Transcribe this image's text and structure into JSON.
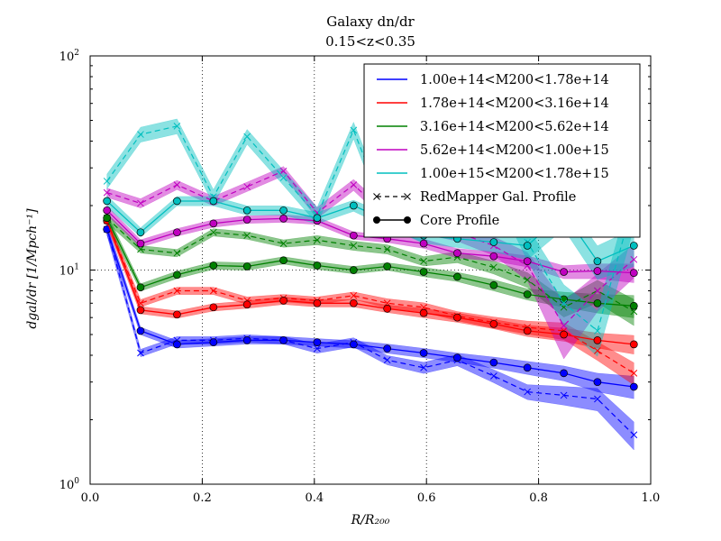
{
  "chart_data": {
    "type": "line",
    "title": "Galaxy dn/dr",
    "subtitle": "0.15<z<0.35",
    "xlabel": "R/R₂₀₀",
    "ylabel": "dgal/dr [1/Mpch⁻¹]",
    "xlim": [
      0.0,
      1.0
    ],
    "ylim": [
      1,
      100
    ],
    "yscale": "log",
    "grid": "dotted",
    "legend_position": "top-right",
    "x_ticks": [
      "0.0",
      "0.2",
      "0.4",
      "0.6",
      "0.8",
      "1.0"
    ],
    "y_ticks": [
      {
        "base": "10",
        "exp": "0"
      },
      {
        "base": "10",
        "exp": "1"
      },
      {
        "base": "10",
        "exp": "2"
      }
    ],
    "x": [
      0.03,
      0.09,
      0.155,
      0.22,
      0.28,
      0.345,
      0.405,
      0.47,
      0.53,
      0.595,
      0.655,
      0.72,
      0.78,
      0.845,
      0.905,
      0.97
    ],
    "series": [
      {
        "name": "1.00e+14<M200<1.78e+14",
        "color": "#0000ff",
        "core": [
          15.5,
          5.2,
          4.5,
          4.6,
          4.7,
          4.7,
          4.6,
          4.5,
          4.3,
          4.1,
          3.9,
          3.7,
          3.5,
          3.3,
          3.0,
          2.85
        ],
        "core_band": [
          0.06,
          0.04,
          0.04,
          0.04,
          0.04,
          0.04,
          0.04,
          0.04,
          0.05,
          0.05,
          0.05,
          0.06,
          0.07,
          0.08,
          0.1,
          0.12
        ],
        "redmapper": [
          15.5,
          4.1,
          4.7,
          4.7,
          4.8,
          4.7,
          4.3,
          4.6,
          3.8,
          3.5,
          3.8,
          3.2,
          2.7,
          2.6,
          2.5,
          1.7
        ],
        "redmapper_band": [
          0.06,
          0.04,
          0.04,
          0.04,
          0.04,
          0.04,
          0.05,
          0.05,
          0.05,
          0.06,
          0.06,
          0.07,
          0.08,
          0.1,
          0.12,
          0.15
        ]
      },
      {
        "name": "1.78e+14<M200<3.16e+14",
        "color": "#ff0000",
        "core": [
          17.0,
          6.5,
          6.2,
          6.7,
          6.9,
          7.2,
          7.0,
          7.0,
          6.6,
          6.3,
          6.0,
          5.6,
          5.2,
          5.0,
          4.7,
          4.5
        ],
        "core_band": [
          0.05,
          0.04,
          0.04,
          0.04,
          0.04,
          0.04,
          0.04,
          0.04,
          0.04,
          0.05,
          0.05,
          0.05,
          0.06,
          0.07,
          0.08,
          0.1
        ],
        "redmapper": [
          17.0,
          7.0,
          8.0,
          8.0,
          7.2,
          7.4,
          7.2,
          7.6,
          7.0,
          6.7,
          6.1,
          5.7,
          5.4,
          5.2,
          4.2,
          3.3
        ],
        "redmapper_band": [
          0.05,
          0.04,
          0.04,
          0.04,
          0.04,
          0.04,
          0.04,
          0.04,
          0.05,
          0.05,
          0.05,
          0.06,
          0.07,
          0.09,
          0.1,
          0.12
        ]
      },
      {
        "name": "3.16e+14<M200<5.62e+14",
        "color": "#008000",
        "core": [
          17.5,
          8.3,
          9.5,
          10.5,
          10.4,
          11.1,
          10.5,
          10.0,
          10.4,
          9.8,
          9.3,
          8.5,
          7.7,
          7.3,
          7.0,
          6.8
        ],
        "core_band": [
          0.05,
          0.04,
          0.04,
          0.04,
          0.04,
          0.04,
          0.04,
          0.04,
          0.04,
          0.05,
          0.05,
          0.06,
          0.06,
          0.08,
          0.1,
          0.12
        ],
        "redmapper": [
          17.5,
          12.5,
          12.0,
          15.0,
          14.5,
          13.3,
          13.8,
          13.0,
          12.5,
          11.0,
          11.5,
          10.3,
          9.0,
          6.7,
          8.0,
          6.4
        ],
        "redmapper_band": [
          0.05,
          0.04,
          0.04,
          0.04,
          0.04,
          0.04,
          0.05,
          0.05,
          0.05,
          0.05,
          0.06,
          0.07,
          0.08,
          0.1,
          0.12,
          0.14
        ]
      },
      {
        "name": "5.62e+14<M200<1.00e+15",
        "color": "#bf00bf",
        "core": [
          19.0,
          13.3,
          15.0,
          16.5,
          17.2,
          17.4,
          17.0,
          14.5,
          14.0,
          13.3,
          12.0,
          11.6,
          11.0,
          9.8,
          9.9,
          9.7
        ],
        "core_band": [
          0.05,
          0.04,
          0.04,
          0.04,
          0.04,
          0.04,
          0.04,
          0.04,
          0.04,
          0.05,
          0.05,
          0.05,
          0.06,
          0.07,
          0.08,
          0.1
        ],
        "redmapper": [
          23.0,
          20.5,
          25.0,
          21.0,
          24.5,
          29.0,
          18.5,
          25.0,
          18.0,
          16.0,
          15.0,
          13.0,
          10.5,
          5.5,
          8.0,
          11.2
        ],
        "redmapper_band": [
          0.05,
          0.05,
          0.05,
          0.05,
          0.05,
          0.05,
          0.06,
          0.06,
          0.07,
          0.08,
          0.09,
          0.1,
          0.15,
          0.3,
          0.2,
          0.18
        ]
      },
      {
        "name": "1.00e+15<M200<1.78e+15",
        "color": "#00bfbf",
        "core": [
          21.0,
          15.0,
          21.0,
          21.0,
          19.0,
          19.0,
          17.5,
          20.0,
          17.0,
          14.5,
          14.0,
          13.5,
          13.0,
          18.5,
          11.0,
          13.0
        ],
        "core_band": [
          0.06,
          0.05,
          0.05,
          0.05,
          0.05,
          0.05,
          0.06,
          0.06,
          0.07,
          0.08,
          0.09,
          0.1,
          0.14,
          0.16,
          0.18,
          0.2
        ],
        "redmapper": [
          26.0,
          43.0,
          47.0,
          22.0,
          42.0,
          27.0,
          18.0,
          45.0,
          18.0,
          15.0,
          38.0,
          27.0,
          13.5,
          7.0,
          5.2,
          21.0
        ],
        "redmapper_band": [
          0.08,
          0.08,
          0.08,
          0.08,
          0.08,
          0.08,
          0.09,
          0.09,
          0.1,
          0.11,
          0.12,
          0.14,
          0.18,
          0.22,
          0.24,
          0.25
        ]
      }
    ],
    "legend_extra": [
      {
        "label": "RedMapper Gal. Profile",
        "style": "dashed-x"
      },
      {
        "label": "Core Profile",
        "style": "solid-dot"
      }
    ]
  }
}
